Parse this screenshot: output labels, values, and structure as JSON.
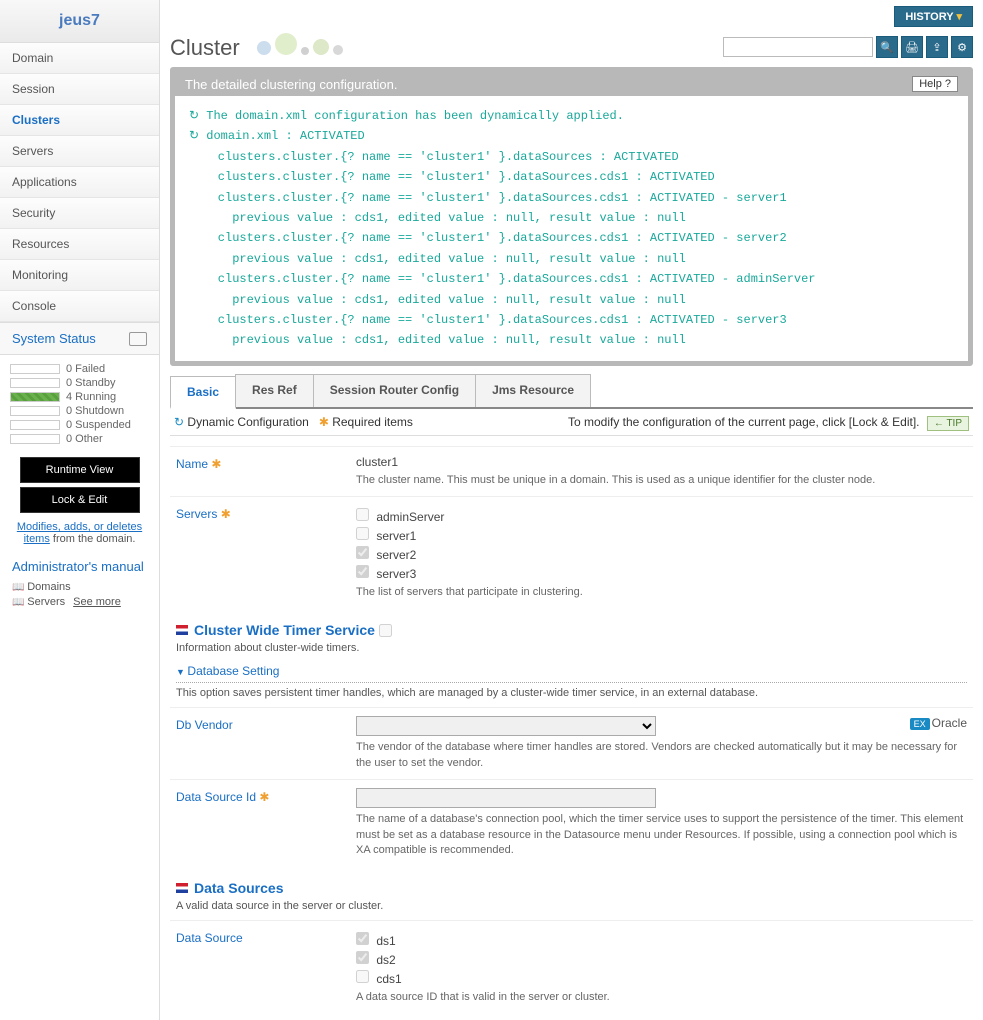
{
  "logo": "jeus7",
  "nav": [
    "Domain",
    "Session",
    "Clusters",
    "Servers",
    "Applications",
    "Security",
    "Resources",
    "Monitoring",
    "Console"
  ],
  "nav_active_index": 2,
  "system_status": {
    "title": "System Status",
    "items": [
      {
        "count": 0,
        "label": "Failed",
        "running": false
      },
      {
        "count": 0,
        "label": "Standby",
        "running": false
      },
      {
        "count": 4,
        "label": "Running",
        "running": true
      },
      {
        "count": 0,
        "label": "Shutdown",
        "running": false
      },
      {
        "count": 0,
        "label": "Suspended",
        "running": false
      },
      {
        "count": 0,
        "label": "Other",
        "running": false
      }
    ]
  },
  "buttons": {
    "runtime": "Runtime View",
    "lock": "Lock & Edit"
  },
  "edit_note": {
    "link": "Modifies, adds, or deletes items",
    "rest": " from the domain."
  },
  "manual": {
    "title": "Administrator's manual",
    "items": [
      "Domains",
      "Servers"
    ],
    "see_more": "See more"
  },
  "history_btn": "HISTORY",
  "page_title": "Cluster",
  "detail_header": "The detailed clustering configuration.",
  "help": "Help",
  "log_lines": [
    "↻ The domain.xml configuration has been dynamically applied.",
    "↻ domain.xml : ACTIVATED",
    "    clusters.cluster.{? name == 'cluster1' }.dataSources : ACTIVATED",
    "    clusters.cluster.{? name == 'cluster1' }.dataSources.cds1 : ACTIVATED",
    "    clusters.cluster.{? name == 'cluster1' }.dataSources.cds1 : ACTIVATED - server1",
    "      previous value : cds1, edited value : null, result value : null",
    "    clusters.cluster.{? name == 'cluster1' }.dataSources.cds1 : ACTIVATED - server2",
    "      previous value : cds1, edited value : null, result value : null",
    "    clusters.cluster.{? name == 'cluster1' }.dataSources.cds1 : ACTIVATED - adminServer",
    "      previous value : cds1, edited value : null, result value : null",
    "    clusters.cluster.{? name == 'cluster1' }.dataSources.cds1 : ACTIVATED - server3",
    "      previous value : cds1, edited value : null, result value : null"
  ],
  "tabs": [
    "Basic",
    "Res Ref",
    "Session Router Config",
    "Jms Resource"
  ],
  "tab_active_index": 0,
  "config_bar": {
    "dynamic": "Dynamic Configuration",
    "required": "Required items",
    "tip_text": "To modify the configuration of the current page, click [Lock & Edit].",
    "tip": "TIP"
  },
  "form": {
    "name": {
      "label": "Name",
      "value": "cluster1",
      "desc": "The cluster name. This must be unique in a domain. This is used as a unique identifier for the cluster node."
    },
    "servers": {
      "label": "Servers",
      "options": [
        {
          "label": "adminServer",
          "checked": false
        },
        {
          "label": "server1",
          "checked": false
        },
        {
          "label": "server2",
          "checked": true
        },
        {
          "label": "server3",
          "checked": true
        }
      ],
      "desc": "The list of servers that participate in clustering."
    }
  },
  "timer": {
    "title": "Cluster Wide Timer Service",
    "desc": "Information about cluster-wide timers."
  },
  "db": {
    "title": "Database Setting",
    "desc": "This option saves persistent timer handles, which are managed by a cluster-wide timer service, in an external database.",
    "vendor": {
      "label": "Db Vendor",
      "example": "Oracle",
      "desc": "The vendor of the database where timer handles are stored. Vendors are checked automatically but it may be necessary for the user to set the vendor."
    },
    "dsid": {
      "label": "Data Source Id",
      "desc": "The name of a database's connection pool, which the timer service uses to support the persistence of the timer. This element must be set as a database resource in the Datasource menu under Resources. If possible, using a connection pool which is XA compatible is recommended."
    }
  },
  "datasources": {
    "title": "Data Sources",
    "desc": "A valid data source in the server or cluster.",
    "field": {
      "label": "Data Source",
      "options": [
        {
          "label": "ds1",
          "checked": true
        },
        {
          "label": "ds2",
          "checked": true
        },
        {
          "label": "cds1",
          "checked": false
        }
      ],
      "desc": "A data source ID that is valid in the server or cluster."
    }
  }
}
